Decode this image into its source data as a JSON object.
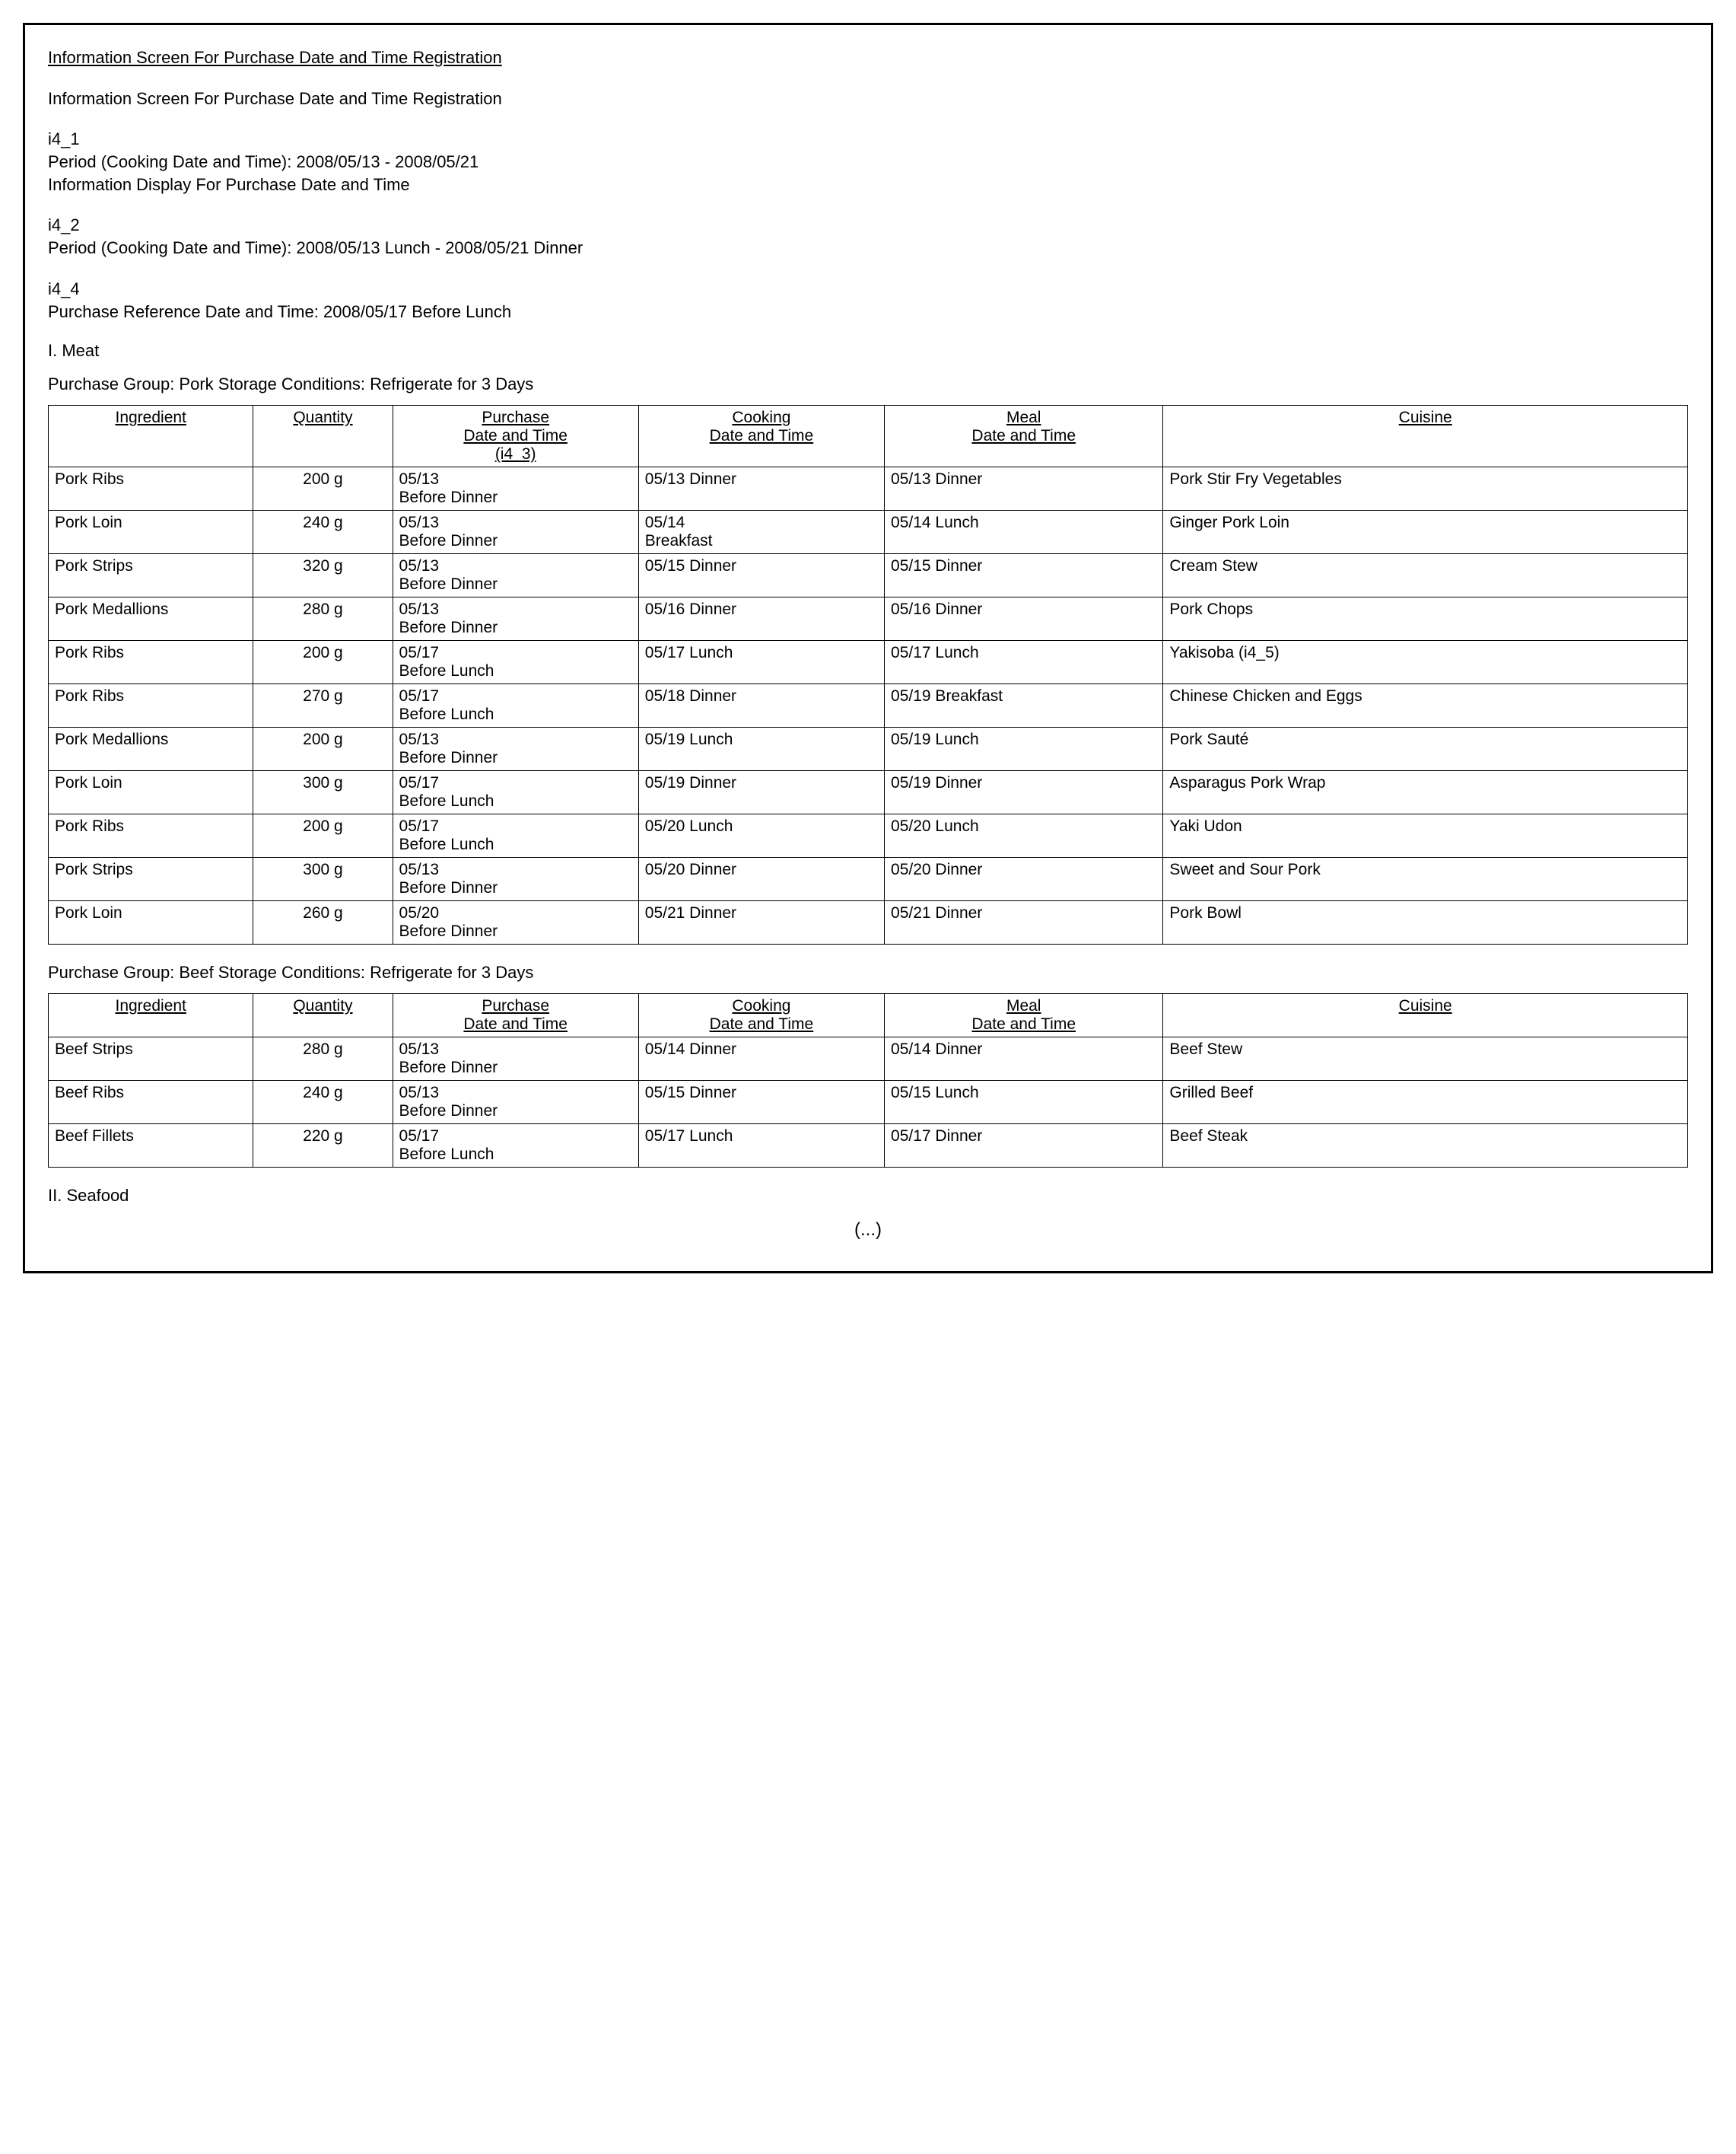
{
  "title_underline": "Information Screen For Purchase Date and Time Registration",
  "subtitle": "Information Screen For Purchase Date and Time Registration",
  "i4_1_label": "i4_1",
  "i4_1_line1": "Period (Cooking Date and Time): 2008/05/13 - 2008/05/21",
  "i4_1_line2": "Information Display For Purchase Date and Time",
  "i4_2_label": "i4_2",
  "i4_2_line1": "Period (Cooking Date and Time): 2008/05/13 Lunch - 2008/05/21 Dinner",
  "i4_4_label": "i4_4",
  "i4_4_line1": "Purchase Reference Date and Time: 2008/05/17 Before Lunch",
  "section_meat": "I. Meat",
  "pork_group_line": "Purchase Group: Pork   Storage Conditions: Refrigerate for 3 Days",
  "beef_group_line": "Purchase Group: Beef   Storage Conditions: Refrigerate for 3 Days",
  "section_seafood": "II. Seafood",
  "ellipsis": "(...)",
  "col_headers": {
    "ingredient": "Ingredient",
    "quantity": "Quantity",
    "purchase1": "Purchase",
    "purchase2": "Date and Time",
    "purchase3": "(i4_3)",
    "cooking1": "Cooking",
    "cooking2": "Date and Time",
    "meal1": "Meal",
    "meal2": "Date and Time",
    "cuisine": "Cuisine"
  },
  "pork_rows": [
    {
      "ing": "Pork Ribs",
      "qty": "200 g",
      "pur": "05/13 Before Dinner",
      "cook": "05/13 Dinner",
      "meal": "05/13 Dinner",
      "cui": "Pork Stir Fry Vegetables"
    },
    {
      "ing": "Pork Loin",
      "qty": "240 g",
      "pur": "05/13 Before Dinner",
      "cook": "05/14 Breakfast",
      "meal": "05/14 Lunch",
      "cui": "Ginger Pork Loin"
    },
    {
      "ing": "Pork Strips",
      "qty": "320 g",
      "pur": "05/13 Before Dinner",
      "cook": "05/15 Dinner",
      "meal": "05/15 Dinner",
      "cui": "Cream Stew"
    },
    {
      "ing": "Pork Medallions",
      "qty": "280 g",
      "pur": "05/13 Before Dinner",
      "cook": "05/16 Dinner",
      "meal": "05/16 Dinner",
      "cui": "Pork Chops"
    },
    {
      "ing": "Pork Ribs",
      "qty": "200 g",
      "pur": "05/17 Before Lunch",
      "cook": "05/17 Lunch",
      "meal": "05/17 Lunch",
      "cui": "Yakisoba (i4_5)"
    },
    {
      "ing": "Pork Ribs",
      "qty": "270 g",
      "pur": "05/17 Before Lunch",
      "cook": "05/18 Dinner",
      "meal": "05/19 Breakfast",
      "cui": "Chinese Chicken and Eggs"
    },
    {
      "ing": "Pork Medallions",
      "qty": "200 g",
      "pur": "05/13 Before Dinner",
      "cook": "05/19 Lunch",
      "meal": "05/19 Lunch",
      "cui": "Pork Sauté"
    },
    {
      "ing": "Pork Loin",
      "qty": "300 g",
      "pur": "05/17 Before Lunch",
      "cook": "05/19 Dinner",
      "meal": "05/19 Dinner",
      "cui": "Asparagus Pork Wrap"
    },
    {
      "ing": "Pork Ribs",
      "qty": "200 g",
      "pur": "05/17 Before Lunch",
      "cook": "05/20 Lunch",
      "meal": "05/20 Lunch",
      "cui": "Yaki Udon"
    },
    {
      "ing": "Pork Strips",
      "qty": "300 g",
      "pur": "05/13 Before Dinner",
      "cook": "05/20 Dinner",
      "meal": "05/20 Dinner",
      "cui": "Sweet and Sour Pork"
    },
    {
      "ing": "Pork Loin",
      "qty": "260 g",
      "pur": "05/20 Before Dinner",
      "cook": "05/21 Dinner",
      "meal": "05/21 Dinner",
      "cui": "Pork Bowl"
    }
  ],
  "beef_rows": [
    {
      "ing": "Beef Strips",
      "qty": "280 g",
      "pur": "05/13 Before Dinner",
      "cook": "05/14 Dinner",
      "meal": "05/14 Dinner",
      "cui": "Beef Stew"
    },
    {
      "ing": "Beef Ribs",
      "qty": "240 g",
      "pur": "05/13 Before Dinner",
      "cook": "05/15 Dinner",
      "meal": "05/15 Lunch",
      "cui": "Grilled Beef"
    },
    {
      "ing": "Beef Fillets",
      "qty": "220 g",
      "pur": "05/17 Before Lunch",
      "cook": "05/17 Lunch",
      "meal": "05/17 Dinner",
      "cui": "Beef Steak"
    }
  ]
}
